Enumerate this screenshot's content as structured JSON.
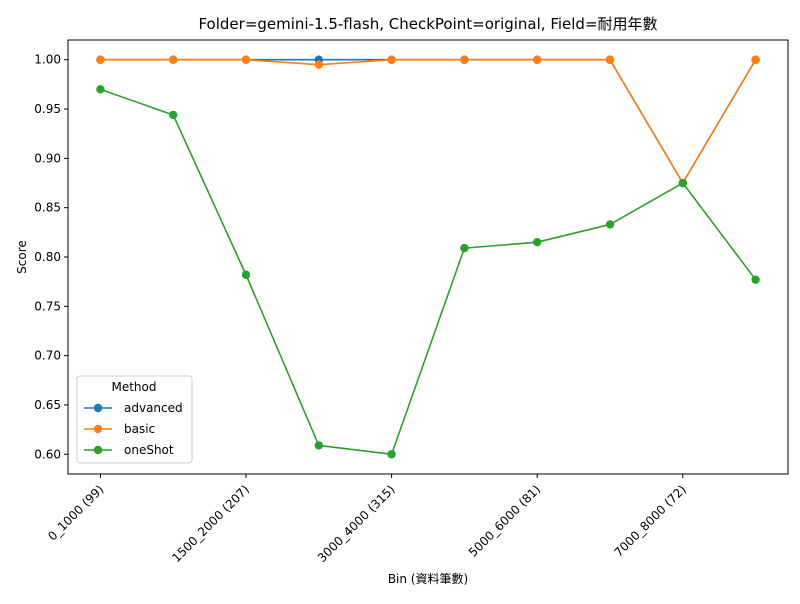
{
  "chart_data": {
    "type": "line",
    "title": "Folder=gemini-1.5-flash, CheckPoint=original, Field=耐用年數",
    "xlabel": "Bin (資料筆數)",
    "ylabel": "Score",
    "ylim": [
      0.58,
      1.02
    ],
    "yticks": [
      "0.60",
      "0.65",
      "0.70",
      "0.75",
      "0.80",
      "0.85",
      "0.90",
      "0.95",
      "1.00"
    ],
    "x_positions": 10,
    "tick_labels": [
      {
        "pos": 0,
        "label": "0_1000 (99)"
      },
      {
        "pos": 2,
        "label": "1500_2000 (207)"
      },
      {
        "pos": 4,
        "label": "3000_4000 (315)"
      },
      {
        "pos": 6,
        "label": "5000_6000 (81)"
      },
      {
        "pos": 8,
        "label": "7000_8000 (72)"
      }
    ],
    "grid": false,
    "legend": {
      "title": "Method",
      "placement": "lower-left"
    },
    "series": [
      {
        "name": "advanced",
        "color": "#1f77b4",
        "values": [
          1.0,
          1.0,
          1.0,
          1.0,
          1.0,
          1.0,
          1.0,
          1.0,
          0.875,
          1.0
        ]
      },
      {
        "name": "basic",
        "color": "#ff7f0e",
        "values": [
          1.0,
          1.0,
          1.0,
          0.995,
          1.0,
          1.0,
          1.0,
          1.0,
          0.875,
          1.0
        ]
      },
      {
        "name": "oneShot",
        "color": "#2ca02c",
        "values": [
          0.97,
          0.944,
          0.782,
          0.609,
          0.6,
          0.809,
          0.815,
          0.833,
          0.875,
          0.777
        ]
      }
    ]
  }
}
